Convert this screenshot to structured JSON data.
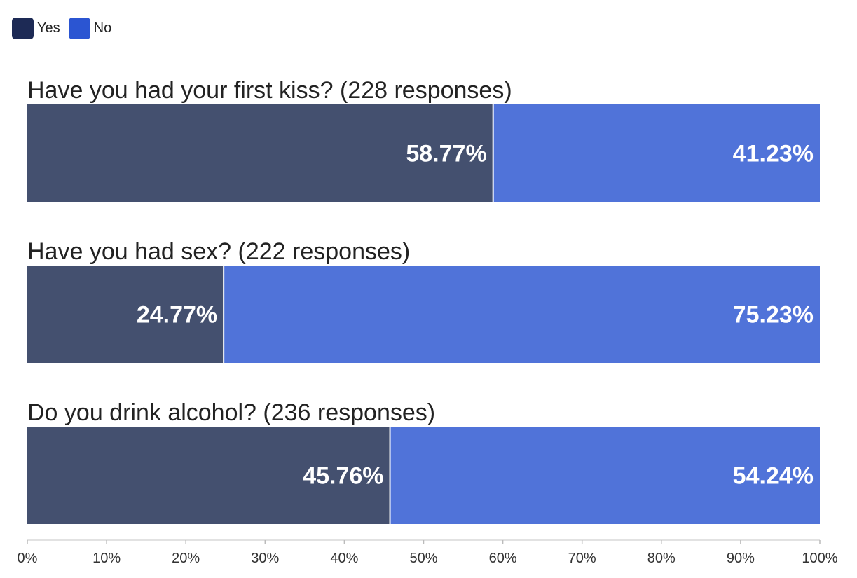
{
  "chart_data": {
    "type": "bar",
    "orientation": "horizontal",
    "stacked": true,
    "percent": true,
    "legend": {
      "placement": "top-left",
      "entries": [
        {
          "name": "Yes",
          "color": "#1d2a55"
        },
        {
          "name": "No",
          "color": "#2b55d2"
        }
      ]
    },
    "categories": [
      "Have you had your first kiss? (228 responses)",
      "Have you had sex? (222 responses)",
      "Do you drink alcohol? (236 responses)"
    ],
    "series": [
      {
        "name": "Yes",
        "color": "#44506f",
        "values": [
          58.77,
          24.77,
          45.76
        ],
        "labels": [
          "58.77%",
          "24.77%",
          "45.76%"
        ]
      },
      {
        "name": "No",
        "color": "#5073d9",
        "values": [
          41.23,
          75.23,
          54.24
        ],
        "labels": [
          "41.23%",
          "75.23%",
          "54.24%"
        ]
      }
    ],
    "xlim": [
      0,
      100
    ],
    "xticks": [
      "0%",
      "10%",
      "20%",
      "30%",
      "40%",
      "50%",
      "60%",
      "70%",
      "80%",
      "90%",
      "100%"
    ],
    "grid": false
  }
}
